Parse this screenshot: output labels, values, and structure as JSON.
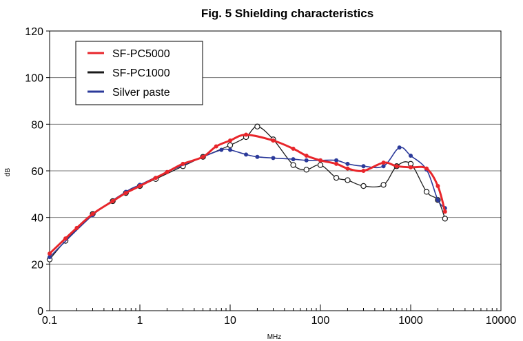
{
  "chart_data": {
    "type": "line",
    "title": "Fig. 5  Shielding characteristics",
    "xlabel": "MHz",
    "ylabel": "dB",
    "x_scale": "log",
    "xlim": [
      0.1,
      10000
    ],
    "ylim": [
      0,
      120
    ],
    "x_ticks": [
      "0.1",
      "1",
      "10",
      "100",
      "1000",
      "10000"
    ],
    "y_ticks": [
      "0",
      "20",
      "40",
      "60",
      "80",
      "100",
      "120"
    ],
    "grid": "horizontal",
    "legend_position": "top-left",
    "series": [
      {
        "name": "SF-PC5000",
        "color": "#e8262b",
        "marker": "filled-circle",
        "points": [
          [
            0.1,
            24.5
          ],
          [
            0.15,
            31
          ],
          [
            0.2,
            35.5
          ],
          [
            0.3,
            41.5
          ],
          [
            0.5,
            47
          ],
          [
            0.7,
            50.5
          ],
          [
            1,
            53.5
          ],
          [
            1.5,
            57
          ],
          [
            2,
            59.5
          ],
          [
            3,
            63
          ],
          [
            5,
            66
          ],
          [
            7,
            70.5
          ],
          [
            10,
            73
          ],
          [
            15,
            75.5
          ],
          [
            30,
            73
          ],
          [
            50,
            69.5
          ],
          [
            70,
            66.5
          ],
          [
            100,
            64.5
          ],
          [
            150,
            63
          ],
          [
            200,
            61
          ],
          [
            300,
            60
          ],
          [
            500,
            63.5
          ],
          [
            700,
            62
          ],
          [
            1000,
            61.5
          ],
          [
            1500,
            61
          ],
          [
            2000,
            53.5
          ],
          [
            2400,
            42.5
          ]
        ]
      },
      {
        "name": "SF-PC1000",
        "color": "#1a1a1a",
        "marker": "open-circle",
        "points": [
          [
            0.1,
            22
          ],
          [
            0.15,
            30
          ],
          [
            0.3,
            41.5
          ],
          [
            0.5,
            47
          ],
          [
            0.7,
            50.5
          ],
          [
            1,
            53.5
          ],
          [
            1.5,
            56.5
          ],
          [
            3,
            62
          ],
          [
            5,
            66
          ],
          [
            10,
            71
          ],
          [
            15,
            74.5
          ],
          [
            20,
            79
          ],
          [
            30,
            73.5
          ],
          [
            50,
            62.5
          ],
          [
            70,
            60.5
          ],
          [
            100,
            62.5
          ],
          [
            150,
            57
          ],
          [
            200,
            56
          ],
          [
            300,
            53.5
          ],
          [
            500,
            54
          ],
          [
            700,
            62
          ],
          [
            1000,
            63
          ],
          [
            1500,
            51
          ],
          [
            2000,
            47.5
          ],
          [
            2400,
            39.5
          ]
        ]
      },
      {
        "name": "Silver paste",
        "color": "#2b3a9a",
        "marker": "filled-circle",
        "points": [
          [
            0.1,
            23
          ],
          [
            0.3,
            41
          ],
          [
            0.7,
            51
          ],
          [
            1,
            54
          ],
          [
            2,
            59.5
          ],
          [
            5,
            66
          ],
          [
            8,
            69
          ],
          [
            10,
            69
          ],
          [
            15,
            67
          ],
          [
            20,
            66
          ],
          [
            30,
            65.5
          ],
          [
            50,
            65
          ],
          [
            70,
            64.5
          ],
          [
            100,
            64.5
          ],
          [
            150,
            64.5
          ],
          [
            200,
            63
          ],
          [
            300,
            62
          ],
          [
            500,
            62
          ],
          [
            750,
            70
          ],
          [
            1000,
            66.5
          ],
          [
            1500,
            60.5
          ],
          [
            2000,
            47.5
          ],
          [
            2400,
            44
          ]
        ]
      }
    ]
  }
}
